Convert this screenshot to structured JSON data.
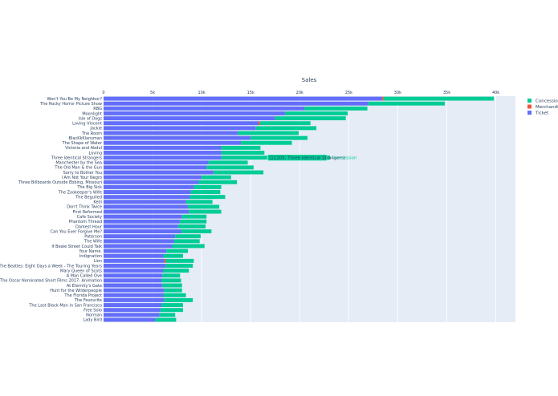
{
  "chart_data": {
    "type": "bar",
    "orientation": "horizontal",
    "barmode": "stack",
    "title": "Sales",
    "xlim": [
      0,
      42000
    ],
    "xticks": [
      0,
      5000,
      10000,
      15000,
      20000,
      25000,
      30000,
      35000,
      40000
    ],
    "xtick_labels": [
      "0",
      "5k",
      "10k",
      "15k",
      "20k",
      "25k",
      "30k",
      "35k",
      "40k"
    ],
    "grid": true,
    "legend_position": "top-right",
    "categories": [
      "Won't You Be My Neighbor?",
      "The Rocky Horror Picture Show",
      "RBG",
      "Moonlight",
      "Isle of Dogs",
      "Loving Vincent",
      "Jackie",
      "The Room",
      "BlacKkKlansman",
      "The Shape of Water",
      "Victoria and Abdul",
      "Loving",
      "Three Identical Strangers",
      "Manchester by the Sea",
      "The Old Man & the Gun",
      "Sorry to Bother You",
      "I Am Not Your Negro",
      "Three Billboards Outside Ebbing, Missouri",
      "The Big Sick",
      "The Zookeeper's Wife",
      "The Beguiled",
      "Kedi",
      "Don't Think Twice",
      "First Reformed",
      "Cafe Society",
      "Phantom Thread",
      "Darkest Hour",
      "Can You Ever Forgive Me?",
      "Paterson",
      "The Wife",
      "If Beale Street Could Talk",
      "Your Name.",
      "Indignation",
      "Lion",
      "The Beatles: Eight Days a Week - The Touring Years",
      "Mary Queen of Scots",
      "A Man Called Ove",
      "The Oscar Nominated Short Films 2017: Animation",
      "At Eternity's Gate",
      "Hunt for the Wilderpeople",
      "The Florida Project",
      "The Favourite",
      "The Last Black Man in San Francisco",
      "Free Solo",
      "Norman",
      "Lady Bird"
    ],
    "series": [
      {
        "name": "Ticket",
        "color": "#636efa",
        "values": [
          28400,
          27000,
          20500,
          18500,
          17500,
          15800,
          15500,
          13700,
          15000,
          14000,
          12000,
          12000,
          12000,
          10700,
          10500,
          11200,
          10000,
          9700,
          9200,
          8900,
          8800,
          8400,
          8600,
          8700,
          8000,
          7800,
          7600,
          7900,
          7300,
          7200,
          7000,
          6400,
          6100,
          6200,
          6300,
          6100,
          6000,
          5900,
          6000,
          6200,
          6100,
          6200,
          5900,
          5800,
          5700,
          5300
        ]
      },
      {
        "name": "Merchandise",
        "color": "#ef553b",
        "values": [
          150,
          0,
          0,
          0,
          0,
          150,
          0,
          0,
          0,
          0,
          0,
          0,
          0,
          0,
          0,
          0,
          0,
          0,
          0,
          0,
          0,
          0,
          0,
          0,
          0,
          0,
          0,
          0,
          0,
          0,
          0,
          0,
          0,
          150,
          0,
          0,
          0,
          0,
          0,
          0,
          0,
          0,
          0,
          0,
          0,
          0
        ]
      },
      {
        "name": "Concession",
        "color": "#00cc96",
        "values": [
          11250,
          7800,
          6400,
          6400,
          7200,
          5150,
          6200,
          6200,
          5800,
          5200,
          4000,
          4400,
          11100,
          4000,
          4800,
          5100,
          3000,
          3900,
          2800,
          3000,
          3600,
          2700,
          3200,
          3300,
          2500,
          2700,
          2800,
          3100,
          2600,
          2600,
          3300,
          2200,
          2000,
          2850,
          2800,
          2600,
          1800,
          2000,
          2000,
          1800,
          2300,
          2900,
          2200,
          2300,
          1600,
          2100
        ]
      }
    ],
    "hover_label": {
      "category_index": 12,
      "series": "Concession",
      "text": "(11100, Three Identical Strangers)",
      "series_label": "Concession"
    }
  }
}
